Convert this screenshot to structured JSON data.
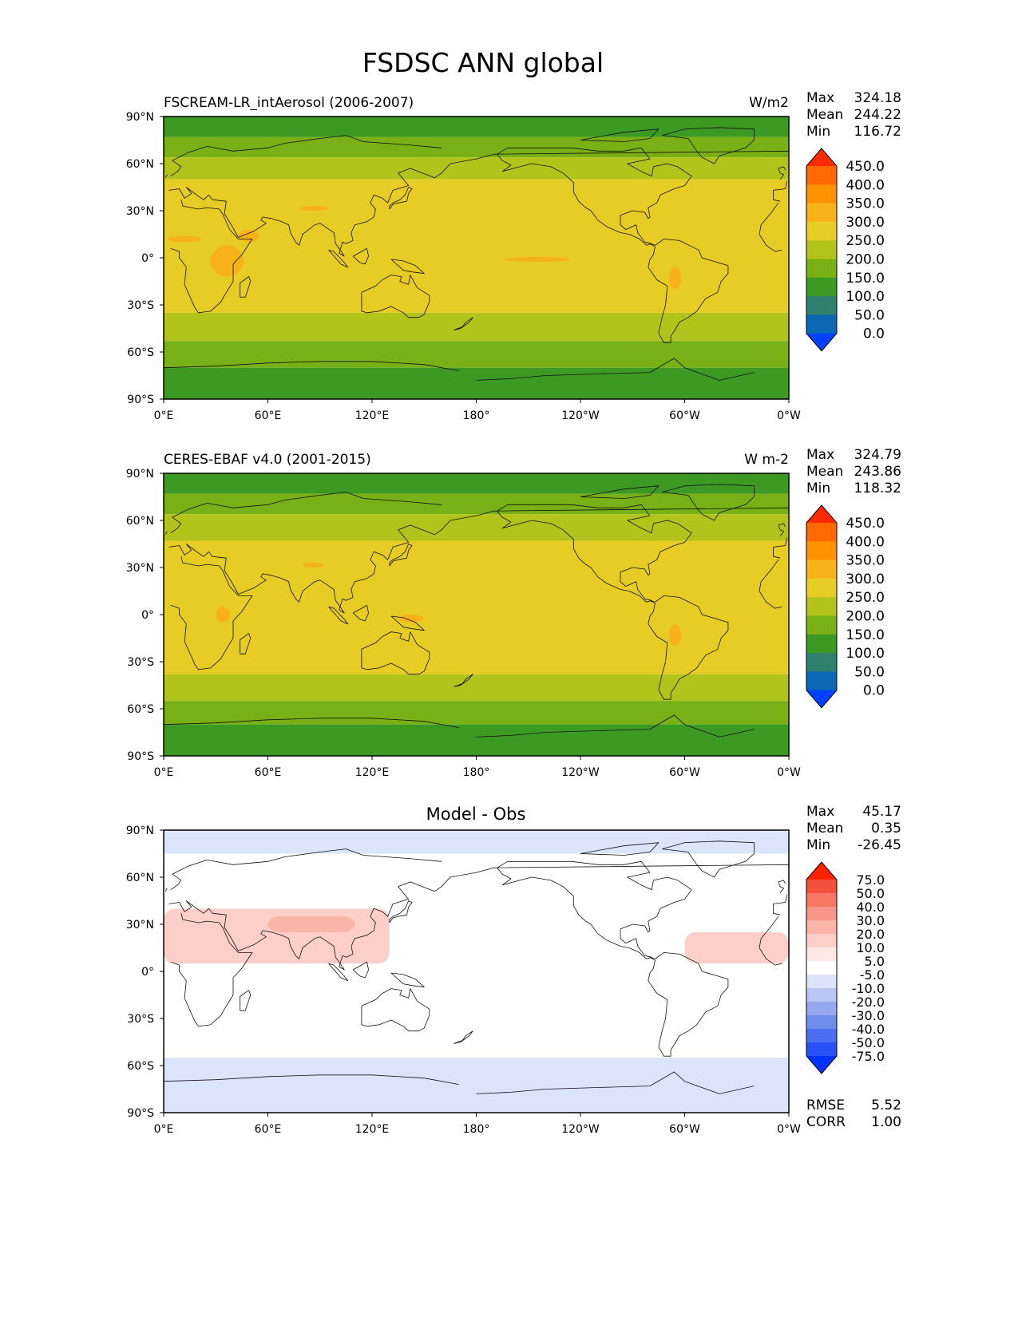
{
  "figure_title": "FSDSC ANN global",
  "panels": [
    {
      "id": "model",
      "left_title": "FSCREAM-LR_intAerosol (2006-2007)",
      "center_title": "",
      "units": "W/m2",
      "stats": [
        {
          "label": "Max",
          "value": "324.18"
        },
        {
          "label": "Mean",
          "value": "244.22"
        },
        {
          "label": "Min",
          "value": "116.72"
        }
      ],
      "colorbar": {
        "labels": [
          "450.0",
          "400.0",
          "350.0",
          "300.0",
          "250.0",
          "200.0",
          "150.0",
          "100.0",
          "50.0",
          "0.0"
        ],
        "colors_top_to_bottom": [
          "#ff2a00",
          "#ff6a00",
          "#ff9200",
          "#f7b21a",
          "#e6cc24",
          "#b2c41c",
          "#78b016",
          "#3c9a24",
          "#308070",
          "#0a68b4",
          "#0040ff"
        ]
      }
    },
    {
      "id": "obs",
      "left_title": "CERES-EBAF v4.0 (2001-2015)",
      "center_title": "",
      "units": "W m-2",
      "stats": [
        {
          "label": "Max",
          "value": "324.79"
        },
        {
          "label": "Mean",
          "value": "243.86"
        },
        {
          "label": "Min",
          "value": "118.32"
        }
      ],
      "colorbar": {
        "labels": [
          "450.0",
          "400.0",
          "350.0",
          "300.0",
          "250.0",
          "200.0",
          "150.0",
          "100.0",
          "50.0",
          "0.0"
        ],
        "colors_top_to_bottom": [
          "#ff2a00",
          "#ff6a00",
          "#ff9200",
          "#f7b21a",
          "#e6cc24",
          "#b2c41c",
          "#78b016",
          "#3c9a24",
          "#308070",
          "#0a68b4",
          "#0040ff"
        ]
      }
    },
    {
      "id": "diff",
      "left_title": "",
      "center_title": "Model - Obs",
      "units": "",
      "stats": [
        {
          "label": "Max",
          "value": "45.17"
        },
        {
          "label": "Mean",
          "value": "0.35"
        },
        {
          "label": "Min",
          "value": "-26.45"
        }
      ],
      "colorbar": {
        "labels": [
          "75.0",
          "50.0",
          "40.0",
          "30.0",
          "20.0",
          "10.0",
          "5.0",
          "-5.0",
          "-10.0",
          "-20.0",
          "-30.0",
          "-40.0",
          "-50.0",
          "-75.0"
        ],
        "colors_top_to_bottom": [
          "#ff2200",
          "#f4503c",
          "#f67864",
          "#f8968a",
          "#fab4a8",
          "#fcd0c8",
          "#fde8e4",
          "#ffffff",
          "#dce4fa",
          "#b8c6f5",
          "#94a8f0",
          "#708ceb",
          "#4c6ef0",
          "#2850f5",
          "#0033ff"
        ]
      },
      "extra_stats": [
        {
          "label": "RMSE",
          "value": "5.52"
        },
        {
          "label": "CORR",
          "value": "1.00"
        }
      ]
    }
  ],
  "x_ticks": [
    "0°E",
    "60°E",
    "120°E",
    "180°",
    "120°W",
    "60°W",
    "0°W"
  ],
  "y_ticks": [
    "90°N",
    "60°N",
    "30°N",
    "0°",
    "30°S",
    "60°S",
    "90°S"
  ],
  "chart_data": [
    {
      "type": "heatmap",
      "title": "FSCREAM-LR_intAerosol (2006-2007)",
      "units": "W/m2",
      "xlim": [
        0,
        360
      ],
      "ylim": [
        -90,
        90
      ],
      "x_tick_values": [
        0,
        60,
        120,
        180,
        240,
        300,
        360
      ],
      "y_tick_values": [
        90,
        60,
        30,
        0,
        -30,
        -60,
        -90
      ],
      "levels": [
        0,
        50,
        100,
        150,
        200,
        250,
        300,
        350,
        400,
        450
      ],
      "stats": {
        "max": 324.18,
        "mean": 244.22,
        "min": 116.72
      },
      "zonal_bands": [
        {
          "lat_range": [
            77,
            90
          ],
          "value_range": [
            100,
            150
          ]
        },
        {
          "lat_range": [
            64,
            77
          ],
          "value_range": [
            150,
            200
          ]
        },
        {
          "lat_range": [
            50,
            64
          ],
          "value_range": [
            200,
            250
          ]
        },
        {
          "lat_range": [
            -35,
            50
          ],
          "value_range": [
            250,
            300
          ]
        },
        {
          "lat_range": [
            -53,
            -35
          ],
          "value_range": [
            200,
            250
          ]
        },
        {
          "lat_range": [
            -70,
            -53
          ],
          "value_range": [
            150,
            200
          ]
        },
        {
          "lat_range": [
            -90,
            -70
          ],
          "value_range": [
            100,
            150
          ]
        }
      ],
      "hotspots_300_350": [
        {
          "region": "Sahara",
          "lon": [
            2,
            22
          ],
          "lat": [
            10,
            14
          ]
        },
        {
          "region": "East Africa",
          "lon": [
            27,
            46
          ],
          "lat": [
            -12,
            8
          ]
        },
        {
          "region": "Arabia",
          "lon": [
            43,
            55
          ],
          "lat": [
            10,
            18
          ]
        },
        {
          "region": "Tibet",
          "lon": [
            78,
            95
          ],
          "lat": [
            30,
            33
          ]
        },
        {
          "region": "Equatorial Pacific",
          "lon": [
            197,
            234
          ],
          "lat": [
            -2,
            0
          ]
        },
        {
          "region": "Andes",
          "lon": [
            291,
            298
          ],
          "lat": [
            -20,
            -6
          ]
        }
      ]
    },
    {
      "type": "heatmap",
      "title": "CERES-EBAF v4.0 (2001-2015)",
      "units": "W m-2",
      "xlim": [
        0,
        360
      ],
      "ylim": [
        -90,
        90
      ],
      "x_tick_values": [
        0,
        60,
        120,
        180,
        240,
        300,
        360
      ],
      "y_tick_values": [
        90,
        60,
        30,
        0,
        -30,
        -60,
        -90
      ],
      "levels": [
        0,
        50,
        100,
        150,
        200,
        250,
        300,
        350,
        400,
        450
      ],
      "stats": {
        "max": 324.79,
        "mean": 243.86,
        "min": 118.32
      },
      "zonal_bands": [
        {
          "lat_range": [
            77,
            90
          ],
          "value_range": [
            100,
            150
          ]
        },
        {
          "lat_range": [
            64,
            77
          ],
          "value_range": [
            150,
            200
          ]
        },
        {
          "lat_range": [
            47,
            64
          ],
          "value_range": [
            200,
            250
          ]
        },
        {
          "lat_range": [
            -38,
            47
          ],
          "value_range": [
            250,
            300
          ]
        },
        {
          "lat_range": [
            -55,
            -38
          ],
          "value_range": [
            200,
            250
          ]
        },
        {
          "lat_range": [
            -70,
            -55
          ],
          "value_range": [
            150,
            200
          ]
        },
        {
          "lat_range": [
            -90,
            -70
          ],
          "value_range": [
            100,
            150
          ]
        }
      ],
      "hotspots_300_350": [
        {
          "region": "Tibet",
          "lon": [
            80,
            92
          ],
          "lat": [
            30,
            33
          ]
        },
        {
          "region": "East Africa",
          "lon": [
            30,
            38
          ],
          "lat": [
            -5,
            5
          ]
        },
        {
          "region": "Maritime Continent",
          "lon": [
            135,
            150
          ],
          "lat": [
            -5,
            0
          ]
        },
        {
          "region": "Andes",
          "lon": [
            291,
            298
          ],
          "lat": [
            -20,
            -6
          ]
        }
      ]
    },
    {
      "type": "heatmap",
      "title": "Model - Obs",
      "xlim": [
        0,
        360
      ],
      "ylim": [
        -90,
        90
      ],
      "x_tick_values": [
        0,
        60,
        120,
        180,
        240,
        300,
        360
      ],
      "y_tick_values": [
        90,
        60,
        30,
        0,
        -30,
        -60,
        -90
      ],
      "levels": [
        -75,
        -50,
        -40,
        -30,
        -20,
        -10,
        -5,
        5,
        10,
        20,
        30,
        40,
        50,
        75
      ],
      "stats": {
        "max": 45.17,
        "mean": 0.35,
        "min": -26.45,
        "rmse": 5.52,
        "corr": 1.0
      },
      "regions": [
        {
          "region": "North Africa / Asia dust belt",
          "lon": [
            0,
            130
          ],
          "lat": [
            5,
            40
          ],
          "value_range": [
            5,
            20
          ]
        },
        {
          "region": "Tibet / NW India",
          "lon": [
            60,
            110
          ],
          "lat": [
            25,
            35
          ],
          "value_range": [
            20,
            30
          ]
        },
        {
          "region": "Tropical Atlantic",
          "lon": [
            300,
            360
          ],
          "lat": [
            5,
            25
          ],
          "value_range": [
            5,
            20
          ]
        },
        {
          "region": "Arctic",
          "lon": [
            0,
            360
          ],
          "lat": [
            75,
            90
          ],
          "value_range": [
            -10,
            -5
          ]
        },
        {
          "region": "Southern Ocean",
          "lon": [
            0,
            360
          ],
          "lat": [
            -90,
            -55
          ],
          "value_range": [
            -10,
            -5
          ]
        }
      ]
    }
  ]
}
